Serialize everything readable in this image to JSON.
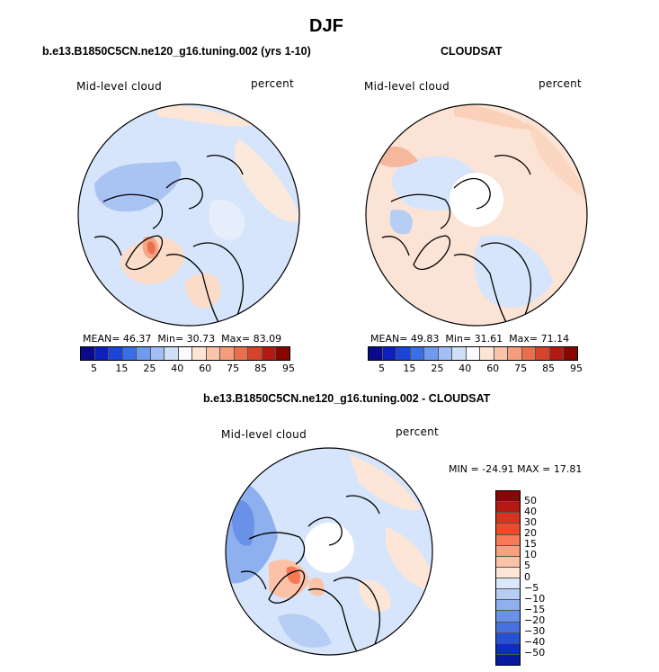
{
  "title": "DJF",
  "panel_left": {
    "subtitle": "b.e13.B1850C5CN.ne120_g16.tuning.002 (yrs 1-10)",
    "left_label": "Mid-level cloud",
    "right_label": "percent",
    "mean_label": "MEAN=",
    "mean": "46.37",
    "min_label": "Min=",
    "min": "30.73",
    "max_label": "Max=",
    "max": "83.09"
  },
  "panel_right": {
    "subtitle": "CLOUDSAT",
    "left_label": "Mid-level cloud",
    "right_label": "percent",
    "mean_label": "MEAN=",
    "mean": "49.83",
    "min_label": "Min=",
    "min": "31.61",
    "max_label": "Max=",
    "max": "71.14"
  },
  "panel_diff": {
    "subtitle": "b.e13.B1850C5CN.ne120_g16.tuning.002 - CLOUDSAT",
    "left_label": "Mid-level cloud",
    "right_label": "percent",
    "minmax": "MIN = -24.91 MAX =  17.81"
  },
  "abs_colorbar": {
    "ticks": [
      "5",
      "15",
      "25",
      "40",
      "60",
      "75",
      "85",
      "95"
    ],
    "colors": [
      "#0a0a8c",
      "#0c1fbf",
      "#1c44d8",
      "#3a6ee8",
      "#6e9af0",
      "#a2bff5",
      "#cfdff8",
      "#fbfbff",
      "#fde4d4",
      "#fbc4a8",
      "#f59e7e",
      "#ea6f4f",
      "#d8432b",
      "#b51a12",
      "#8a0505"
    ]
  },
  "diff_colorbar": {
    "ticks": [
      "50",
      "40",
      "30",
      "20",
      "15",
      "10",
      "5",
      "0",
      "−5",
      "−10",
      "−15",
      "−20",
      "−30",
      "−40",
      "−50"
    ],
    "colors": [
      "#8a0505",
      "#b51a12",
      "#d8331f",
      "#ee4a2a",
      "#f57a55",
      "#fa9f80",
      "#fcc2a8",
      "#fde6d8",
      "#dbe7fa",
      "#b6cdf4",
      "#8fb0ee",
      "#6a91e8",
      "#4672e0",
      "#2552d4",
      "#0c2ebd",
      "#081aa0"
    ]
  }
}
